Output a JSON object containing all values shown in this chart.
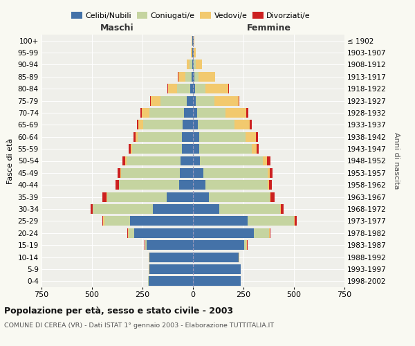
{
  "age_groups": [
    "0-4",
    "5-9",
    "10-14",
    "15-19",
    "20-24",
    "25-29",
    "30-34",
    "35-39",
    "40-44",
    "45-49",
    "50-54",
    "55-59",
    "60-64",
    "65-69",
    "70-74",
    "75-79",
    "80-84",
    "85-89",
    "90-94",
    "95-99",
    "100+"
  ],
  "birth_years": [
    "1998-2002",
    "1993-1997",
    "1988-1992",
    "1983-1987",
    "1978-1982",
    "1973-1977",
    "1968-1972",
    "1963-1967",
    "1958-1962",
    "1953-1957",
    "1948-1952",
    "1943-1947",
    "1938-1942",
    "1933-1937",
    "1928-1932",
    "1923-1927",
    "1918-1922",
    "1913-1917",
    "1908-1912",
    "1903-1907",
    "≤ 1902"
  ],
  "maschi": {
    "celibi": [
      220,
      215,
      215,
      230,
      290,
      310,
      200,
      130,
      70,
      65,
      60,
      55,
      55,
      50,
      45,
      30,
      15,
      8,
      4,
      2,
      2
    ],
    "coniugati": [
      2,
      2,
      2,
      5,
      30,
      130,
      295,
      295,
      295,
      290,
      270,
      245,
      220,
      195,
      170,
      130,
      65,
      30,
      12,
      3,
      2
    ],
    "vedovi": [
      1,
      1,
      1,
      2,
      3,
      5,
      2,
      3,
      3,
      5,
      5,
      8,
      10,
      25,
      40,
      50,
      45,
      35,
      15,
      5,
      2
    ],
    "divorziati": [
      1,
      1,
      1,
      2,
      3,
      5,
      10,
      20,
      15,
      15,
      15,
      12,
      10,
      8,
      5,
      3,
      2,
      1,
      1,
      0,
      0
    ]
  },
  "femmine": {
    "nubili": [
      235,
      235,
      225,
      255,
      300,
      270,
      130,
      80,
      60,
      50,
      35,
      30,
      30,
      25,
      20,
      15,
      10,
      8,
      5,
      2,
      2
    ],
    "coniugate": [
      1,
      1,
      2,
      10,
      75,
      230,
      300,
      300,
      310,
      320,
      310,
      260,
      230,
      180,
      140,
      90,
      50,
      20,
      8,
      2,
      1
    ],
    "vedove": [
      1,
      1,
      1,
      2,
      5,
      5,
      4,
      5,
      8,
      10,
      20,
      25,
      50,
      75,
      105,
      120,
      115,
      80,
      30,
      8,
      3
    ],
    "divorziate": [
      1,
      1,
      1,
      2,
      5,
      10,
      15,
      20,
      12,
      15,
      20,
      12,
      12,
      10,
      8,
      5,
      3,
      1,
      1,
      0,
      0
    ]
  },
  "colors": {
    "celibi": "#4472a8",
    "coniugati": "#c5d4a0",
    "vedovi": "#f2c96e",
    "divorziati": "#cc2020"
  },
  "xlim": 750,
  "title": "Popolazione per età, sesso e stato civile - 2003",
  "subtitle": "COMUNE DI CEREA (VR) - Dati ISTAT 1° gennaio 2003 - Elaborazione TUTTITALIA.IT",
  "ylabel_left": "Fasce di età",
  "ylabel_right": "Anni di nascita",
  "xlabel_maschi": "Maschi",
  "xlabel_femmine": "Femmine",
  "bg_color": "#f9f9f2",
  "plot_bg": "#efefea"
}
